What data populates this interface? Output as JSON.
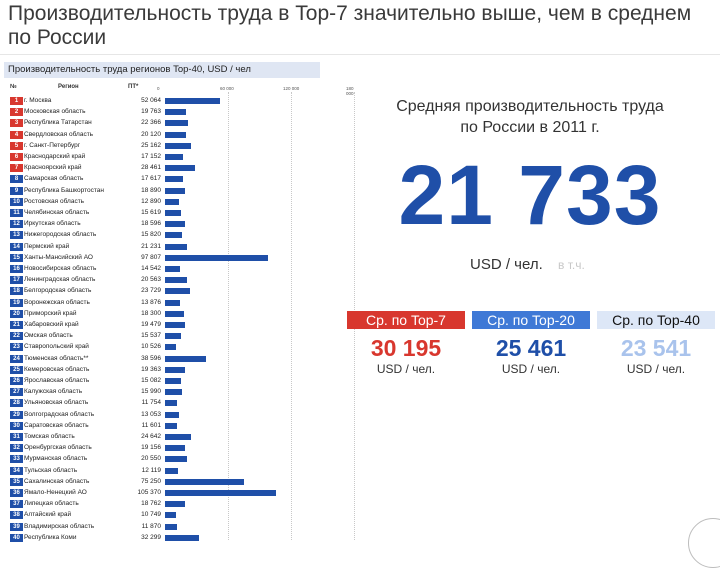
{
  "slide": {
    "title": "Производительность труда в Top-7 значительно выше, чем в среднем по России"
  },
  "chart_data": {
    "type": "bar",
    "title": "Производительность труда регионов Top-40, USD / чел",
    "columns": [
      "№",
      "Регион",
      "ПТ*"
    ],
    "axis_tick_labels": [
      "0",
      "60 000",
      "120 000",
      "180 000"
    ],
    "x_range": [
      0,
      180000
    ],
    "orientation": "horizontal",
    "top_color": "#d8372e",
    "bar_color": "#1f4fa8",
    "rows": [
      {
        "rank": "1",
        "region": "г. Москва",
        "value": 52064,
        "label": "52 064"
      },
      {
        "rank": "2",
        "region": "Московская область",
        "value": 19763,
        "label": "19 763"
      },
      {
        "rank": "3",
        "region": "Республика Татарстан",
        "value": 22366,
        "label": "22 366"
      },
      {
        "rank": "4",
        "region": "Свердловская область",
        "value": 20120,
        "label": "20 120"
      },
      {
        "rank": "5",
        "region": "г. Санкт-Петербург",
        "value": 25162,
        "label": "25 162"
      },
      {
        "rank": "6",
        "region": "Краснодарский край",
        "value": 17152,
        "label": "17 152"
      },
      {
        "rank": "7",
        "region": "Красноярский край",
        "value": 28461,
        "label": "28 461"
      },
      {
        "rank": "8",
        "region": "Самарская область",
        "value": 17617,
        "label": "17 617"
      },
      {
        "rank": "9",
        "region": "Республика Башкортостан",
        "value": 18890,
        "label": "18 890"
      },
      {
        "rank": "10",
        "region": "Ростовская область",
        "value": 12890,
        "label": "12 890"
      },
      {
        "rank": "11",
        "region": "Челябинская область",
        "value": 15619,
        "label": "15 619"
      },
      {
        "rank": "12",
        "region": "Иркутская область",
        "value": 18596,
        "label": "18 596"
      },
      {
        "rank": "13",
        "region": "Нижегородская область",
        "value": 15820,
        "label": "15 820"
      },
      {
        "rank": "14",
        "region": "Пермский край",
        "value": 21231,
        "label": "21 231"
      },
      {
        "rank": "15",
        "region": "Ханты-Мансийский АО",
        "value": 97807,
        "label": "97 807"
      },
      {
        "rank": "16",
        "region": "Новосибирская область",
        "value": 14542,
        "label": "14 542"
      },
      {
        "rank": "17",
        "region": "Ленинградская область",
        "value": 20563,
        "label": "20 563"
      },
      {
        "rank": "18",
        "region": "Белгородская область",
        "value": 23729,
        "label": "23 729"
      },
      {
        "rank": "19",
        "region": "Воронежская область",
        "value": 13876,
        "label": "13 876"
      },
      {
        "rank": "20",
        "region": "Приморский край",
        "value": 18300,
        "label": "18 300"
      },
      {
        "rank": "21",
        "region": "Хабаровский край",
        "value": 19479,
        "label": "19 479"
      },
      {
        "rank": "22",
        "region": "Омская область",
        "value": 15537,
        "label": "15 537"
      },
      {
        "rank": "23",
        "region": "Ставропольский край",
        "value": 10526,
        "label": "10 526"
      },
      {
        "rank": "24",
        "region": "Тюменская область**",
        "value": 38596,
        "label": "38 596"
      },
      {
        "rank": "25",
        "region": "Кемеровская область",
        "value": 19363,
        "label": "19 363"
      },
      {
        "rank": "26",
        "region": "Ярославская область",
        "value": 15082,
        "label": "15 082"
      },
      {
        "rank": "27",
        "region": "Калужская область",
        "value": 15990,
        "label": "15 990"
      },
      {
        "rank": "28",
        "region": "Ульяновская область",
        "value": 11754,
        "label": "11 754"
      },
      {
        "rank": "29",
        "region": "Волгоградская область",
        "value": 13053,
        "label": "13 053"
      },
      {
        "rank": "30",
        "region": "Саратовская область",
        "value": 11601,
        "label": "11 601"
      },
      {
        "rank": "31",
        "region": "Томская область",
        "value": 24642,
        "label": "24 642"
      },
      {
        "rank": "32",
        "region": "Оренбургская область",
        "value": 19156,
        "label": "19 156"
      },
      {
        "rank": "33",
        "region": "Мурманская область",
        "value": 20550,
        "label": "20 550"
      },
      {
        "rank": "34",
        "region": "Тульская область",
        "value": 12119,
        "label": "12 119"
      },
      {
        "rank": "35",
        "region": "Сахалинская область",
        "value": 75250,
        "label": "75 250"
      },
      {
        "rank": "36",
        "region": "Ямало-Ненецкий АО",
        "value": 105370,
        "label": "105 370"
      },
      {
        "rank": "37",
        "region": "Липецкая область",
        "value": 18762,
        "label": "18 762"
      },
      {
        "rank": "38",
        "region": "Алтайский край",
        "value": 10749,
        "label": "10 749"
      },
      {
        "rank": "39",
        "region": "Владимирская область",
        "value": 11870,
        "label": "11 870"
      },
      {
        "rank": "40",
        "region": "Республика Коми",
        "value": 32299,
        "label": "32 299"
      }
    ]
  },
  "summary": {
    "caption_line1": "Средняя производительность труда",
    "caption_line2": "по России в 2011 г.",
    "value": "21 733",
    "unit": "USD / чел.",
    "unit_note": "в т.ч.",
    "value_color": "#1f4fa8",
    "comparisons": [
      {
        "label": "Ср. по Top-7",
        "value": "30 195",
        "unit": "USD / чел.",
        "label_bg": "#d8372e",
        "label_fg": "#ffffff",
        "value_color": "#d8372e"
      },
      {
        "label": "Ср. по Top-20",
        "value": "25 461",
        "unit": "USD / чел.",
        "label_bg": "#3f79d6",
        "label_fg": "#ffffff",
        "value_color": "#1f4fa8"
      },
      {
        "label": "Ср. по Top-40",
        "value": "23 541",
        "unit": "USD / чел.",
        "label_bg": "#dde7f7",
        "label_fg": "#111111",
        "value_color": "#a9c3ec"
      }
    ]
  }
}
